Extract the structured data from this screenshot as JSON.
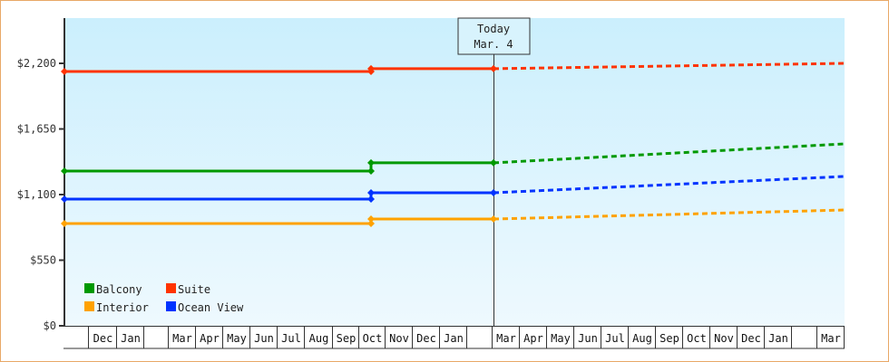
{
  "chart_data": {
    "type": "line",
    "title": "",
    "xlabel": "",
    "ylabel": "",
    "ylim": [
      0,
      2200
    ],
    "yticks": [
      {
        "value": 0,
        "label": "$0"
      },
      {
        "value": 550,
        "label": "$550"
      },
      {
        "value": 1100,
        "label": "$1,100"
      },
      {
        "value": 1650,
        "label": "$1,650"
      },
      {
        "value": 2200,
        "label": "$2,200"
      }
    ],
    "x_months": [
      "",
      "Dec",
      "Jan",
      "",
      "Mar",
      "Apr",
      "May",
      "Jun",
      "Jul",
      "Aug",
      "Sep",
      "Oct",
      "Nov",
      "Dec",
      "Jan",
      "",
      "Mar",
      "Apr",
      "May",
      "Jun",
      "Jul",
      "Aug",
      "Sep",
      "Oct",
      "Nov",
      "Dec",
      "Jan",
      "",
      "Mar"
    ],
    "x_dividers": [
      71,
      97,
      128,
      158,
      185,
      215,
      245,
      275,
      305,
      335,
      366,
      395,
      424,
      454,
      484,
      514,
      542,
      572,
      602,
      632,
      662,
      692,
      722,
      752,
      782,
      812,
      842,
      872,
      900,
      930
    ],
    "today_marker": {
      "label_line1": "Today",
      "label_line2": "Mar. 4",
      "x": 544
    },
    "grid": false,
    "legend_position": "lower-left",
    "series": [
      {
        "name": "Balcony",
        "color": "#009900",
        "historical": [
          [
            71,
            1297
          ],
          [
            409,
            1297
          ],
          [
            409,
            1366
          ],
          [
            544,
            1366
          ]
        ],
        "forecast": [
          [
            544,
            1366
          ],
          [
            931,
            1525
          ]
        ]
      },
      {
        "name": "Suite",
        "color": "#ff3300",
        "historical": [
          [
            71,
            2132
          ],
          [
            409,
            2132
          ],
          [
            409,
            2155
          ],
          [
            544,
            2155
          ]
        ],
        "forecast": [
          [
            544,
            2155
          ],
          [
            931,
            2200
          ]
        ]
      },
      {
        "name": "Interior",
        "color": "#ffa200",
        "historical": [
          [
            71,
            857
          ],
          [
            409,
            857
          ],
          [
            409,
            895
          ],
          [
            544,
            895
          ]
        ],
        "forecast": [
          [
            544,
            895
          ],
          [
            931,
            971
          ]
        ]
      },
      {
        "name": "Ocean View",
        "color": "#0033ff",
        "historical": [
          [
            71,
            1062
          ],
          [
            409,
            1062
          ],
          [
            409,
            1115
          ],
          [
            544,
            1115
          ]
        ],
        "forecast": [
          [
            544,
            1115
          ],
          [
            931,
            1252
          ]
        ]
      }
    ]
  },
  "legend": [
    {
      "label": "Balcony",
      "color": "#009900"
    },
    {
      "label": "Suite",
      "color": "#ff3300"
    },
    {
      "label": "Interior",
      "color": "#ffa200"
    },
    {
      "label": "Ocean View",
      "color": "#0033ff"
    }
  ],
  "today": {
    "line1": "Today",
    "line2": "Mar. 4"
  }
}
